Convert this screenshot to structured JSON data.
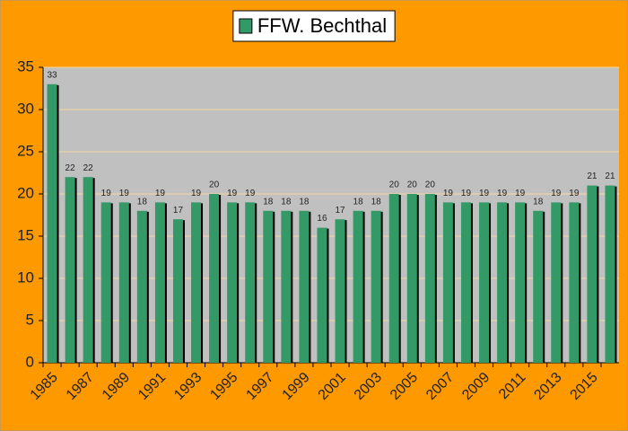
{
  "chart_data": {
    "type": "bar",
    "categories": [
      "1985",
      null,
      "1987",
      null,
      "1989",
      null,
      "1991",
      null,
      "1993",
      null,
      "1995",
      null,
      "1997",
      null,
      "1999",
      null,
      "2001",
      null,
      "2003",
      null,
      "2005",
      null,
      "2007",
      null,
      "2009",
      null,
      "2011",
      null,
      "2013",
      null,
      "2015",
      null
    ],
    "series": [
      {
        "name": "FFW. Bechthal",
        "color": "#339966",
        "values": [
          33,
          22,
          22,
          19,
          19,
          18,
          19,
          17,
          19,
          20,
          19,
          19,
          18,
          18,
          18,
          16,
          17,
          18,
          18,
          20,
          20,
          20,
          19,
          19,
          19,
          19,
          19,
          18,
          19,
          19,
          21,
          21
        ]
      }
    ],
    "ylim": [
      0,
      35
    ],
    "yticks": [
      0,
      5,
      10,
      15,
      20,
      25,
      30,
      35
    ],
    "grid": true,
    "legend": "top"
  }
}
